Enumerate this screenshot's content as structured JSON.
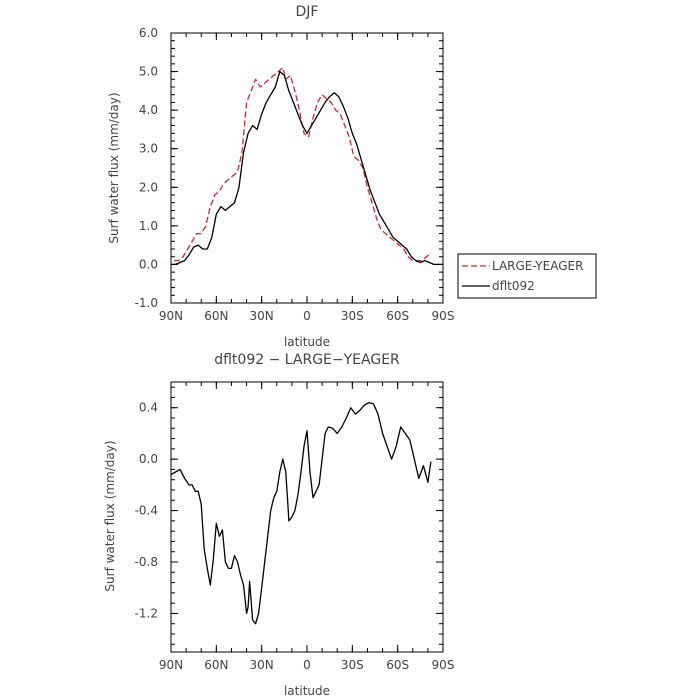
{
  "chart_data": [
    {
      "type": "line",
      "title": "DJF",
      "xlabel": "latitude",
      "ylabel": "Surf water flux (mm/day)",
      "xlim": [
        90,
        -90
      ],
      "ylim": [
        -1.0,
        6.0
      ],
      "x_ticks": [
        90,
        60,
        30,
        0,
        -30,
        -60,
        -90
      ],
      "x_tick_labels": [
        "90N",
        "60N",
        "30N",
        "0",
        "30S",
        "60S",
        "90S"
      ],
      "y_ticks": [
        -1.0,
        0.0,
        1.0,
        2.0,
        3.0,
        4.0,
        5.0,
        6.0
      ],
      "y_tick_labels": [
        "-1.0",
        "0.0",
        "1.0",
        "2.0",
        "3.0",
        "4.0",
        "5.0",
        "6.0"
      ],
      "grid": false,
      "legend_position": "right",
      "series": [
        {
          "name": "LARGE-YEAGER",
          "color": "#e02020",
          "dash": "dashed",
          "x": [
            88,
            85,
            82,
            79,
            76,
            73,
            70,
            67,
            64,
            61,
            58,
            55,
            52,
            49,
            46,
            43,
            40,
            37,
            34,
            31,
            28,
            25,
            22,
            19,
            16,
            14,
            11,
            8,
            5,
            2,
            -1,
            -4,
            -7,
            -10,
            -13,
            -16,
            -19,
            -22,
            -25,
            -28,
            -31,
            -34,
            -37,
            -40,
            -43,
            -46,
            -49,
            -52,
            -55,
            -58,
            -61,
            -64,
            -67,
            -70,
            -73,
            -76,
            -79,
            -82
          ],
          "values": [
            0.1,
            0.1,
            0.2,
            0.4,
            0.6,
            0.8,
            0.8,
            1.0,
            1.5,
            1.8,
            1.9,
            2.1,
            2.2,
            2.3,
            2.4,
            2.9,
            4.2,
            4.5,
            4.8,
            4.6,
            4.7,
            4.8,
            4.9,
            5.0,
            5.1,
            4.8,
            4.9,
            4.5,
            4.0,
            3.4,
            3.3,
            3.8,
            4.2,
            4.4,
            4.3,
            4.2,
            4.0,
            3.9,
            3.6,
            3.3,
            2.8,
            2.7,
            2.5,
            2.0,
            1.6,
            1.2,
            0.9,
            0.8,
            0.7,
            0.6,
            0.5,
            0.4,
            0.2,
            0.1,
            0.1,
            0.1,
            0.2,
            0.3
          ]
        },
        {
          "name": "dflt092",
          "color": "#000000",
          "dash": "solid",
          "x": [
            90,
            87,
            84,
            81,
            78,
            75,
            72,
            69,
            66,
            63,
            60,
            57,
            54,
            51,
            48,
            45,
            42,
            39,
            36,
            33,
            30,
            27,
            24,
            21,
            18,
            15,
            12,
            9,
            6,
            3,
            0,
            -3,
            -6,
            -9,
            -12,
            -15,
            -18,
            -21,
            -24,
            -27,
            -30,
            -33,
            -36,
            -39,
            -42,
            -45,
            -48,
            -51,
            -54,
            -57,
            -60,
            -63,
            -66,
            -69,
            -72,
            -75,
            -78,
            -81,
            -84,
            -87,
            -90
          ],
          "values": [
            0.0,
            0.0,
            0.05,
            0.1,
            0.25,
            0.45,
            0.5,
            0.4,
            0.4,
            0.7,
            1.3,
            1.5,
            1.4,
            1.5,
            1.6,
            2.0,
            2.9,
            3.4,
            3.6,
            3.5,
            3.9,
            4.2,
            4.4,
            4.6,
            5.0,
            4.9,
            4.5,
            4.2,
            3.9,
            3.6,
            3.4,
            3.6,
            3.8,
            4.0,
            4.2,
            4.35,
            4.45,
            4.35,
            4.1,
            3.8,
            3.4,
            3.1,
            2.7,
            2.3,
            1.9,
            1.6,
            1.3,
            1.1,
            0.9,
            0.7,
            0.6,
            0.5,
            0.4,
            0.2,
            0.1,
            0.05,
            0.1,
            0.05,
            0.0,
            0.0,
            0.0
          ]
        }
      ]
    },
    {
      "type": "line",
      "title": "dflt092 − LARGE−YEAGER",
      "xlabel": "latitude",
      "ylabel": "Surf water flux (mm/day)",
      "xlim": [
        90,
        -90
      ],
      "ylim": [
        -1.5,
        0.6
      ],
      "x_ticks": [
        90,
        60,
        30,
        0,
        -30,
        -60,
        -90
      ],
      "x_tick_labels": [
        "90N",
        "60N",
        "30N",
        "0",
        "30S",
        "60S",
        "90S"
      ],
      "y_ticks": [
        -1.2,
        -0.8,
        -0.4,
        0.0,
        0.4
      ],
      "y_tick_labels": [
        "-1.2",
        "-0.8",
        "-0.4",
        "0.0",
        "0.4"
      ],
      "grid": false,
      "series": [
        {
          "color": "#000000",
          "dash": "solid",
          "x": [
            90,
            87,
            84,
            81,
            78,
            76,
            74,
            72,
            70,
            68,
            66,
            64,
            62,
            60,
            58,
            56,
            54,
            52,
            50,
            48,
            46,
            44,
            42,
            40,
            39,
            38,
            37,
            36,
            34,
            32,
            30,
            28,
            26,
            24,
            22,
            20,
            18,
            16,
            14,
            12,
            10,
            8,
            6,
            4,
            2,
            0,
            -2,
            -4,
            -6,
            -8,
            -10,
            -12,
            -14,
            -17,
            -20,
            -23,
            -26,
            -29,
            -32,
            -35,
            -38,
            -41,
            -44,
            -47,
            -50,
            -53,
            -56,
            -59,
            -62,
            -65,
            -68,
            -71,
            -74,
            -77,
            -80,
            -82
          ],
          "values": [
            -0.12,
            -0.1,
            -0.08,
            -0.15,
            -0.2,
            -0.2,
            -0.25,
            -0.25,
            -0.35,
            -0.7,
            -0.85,
            -0.98,
            -0.78,
            -0.5,
            -0.6,
            -0.55,
            -0.8,
            -0.85,
            -0.85,
            -0.75,
            -0.8,
            -0.9,
            -0.98,
            -1.2,
            -1.15,
            -0.95,
            -1.1,
            -1.25,
            -1.28,
            -1.2,
            -1.0,
            -0.8,
            -0.6,
            -0.4,
            -0.3,
            -0.25,
            -0.1,
            0.0,
            -0.1,
            -0.48,
            -0.45,
            -0.4,
            -0.28,
            -0.1,
            0.1,
            0.22,
            -0.1,
            -0.3,
            -0.25,
            -0.2,
            0.0,
            0.2,
            0.25,
            0.24,
            0.2,
            0.25,
            0.32,
            0.4,
            0.35,
            0.38,
            0.42,
            0.44,
            0.43,
            0.35,
            0.2,
            0.1,
            0.0,
            0.1,
            0.25,
            0.2,
            0.15,
            0.0,
            -0.15,
            -0.05,
            -0.18,
            -0.02
          ]
        }
      ]
    }
  ]
}
